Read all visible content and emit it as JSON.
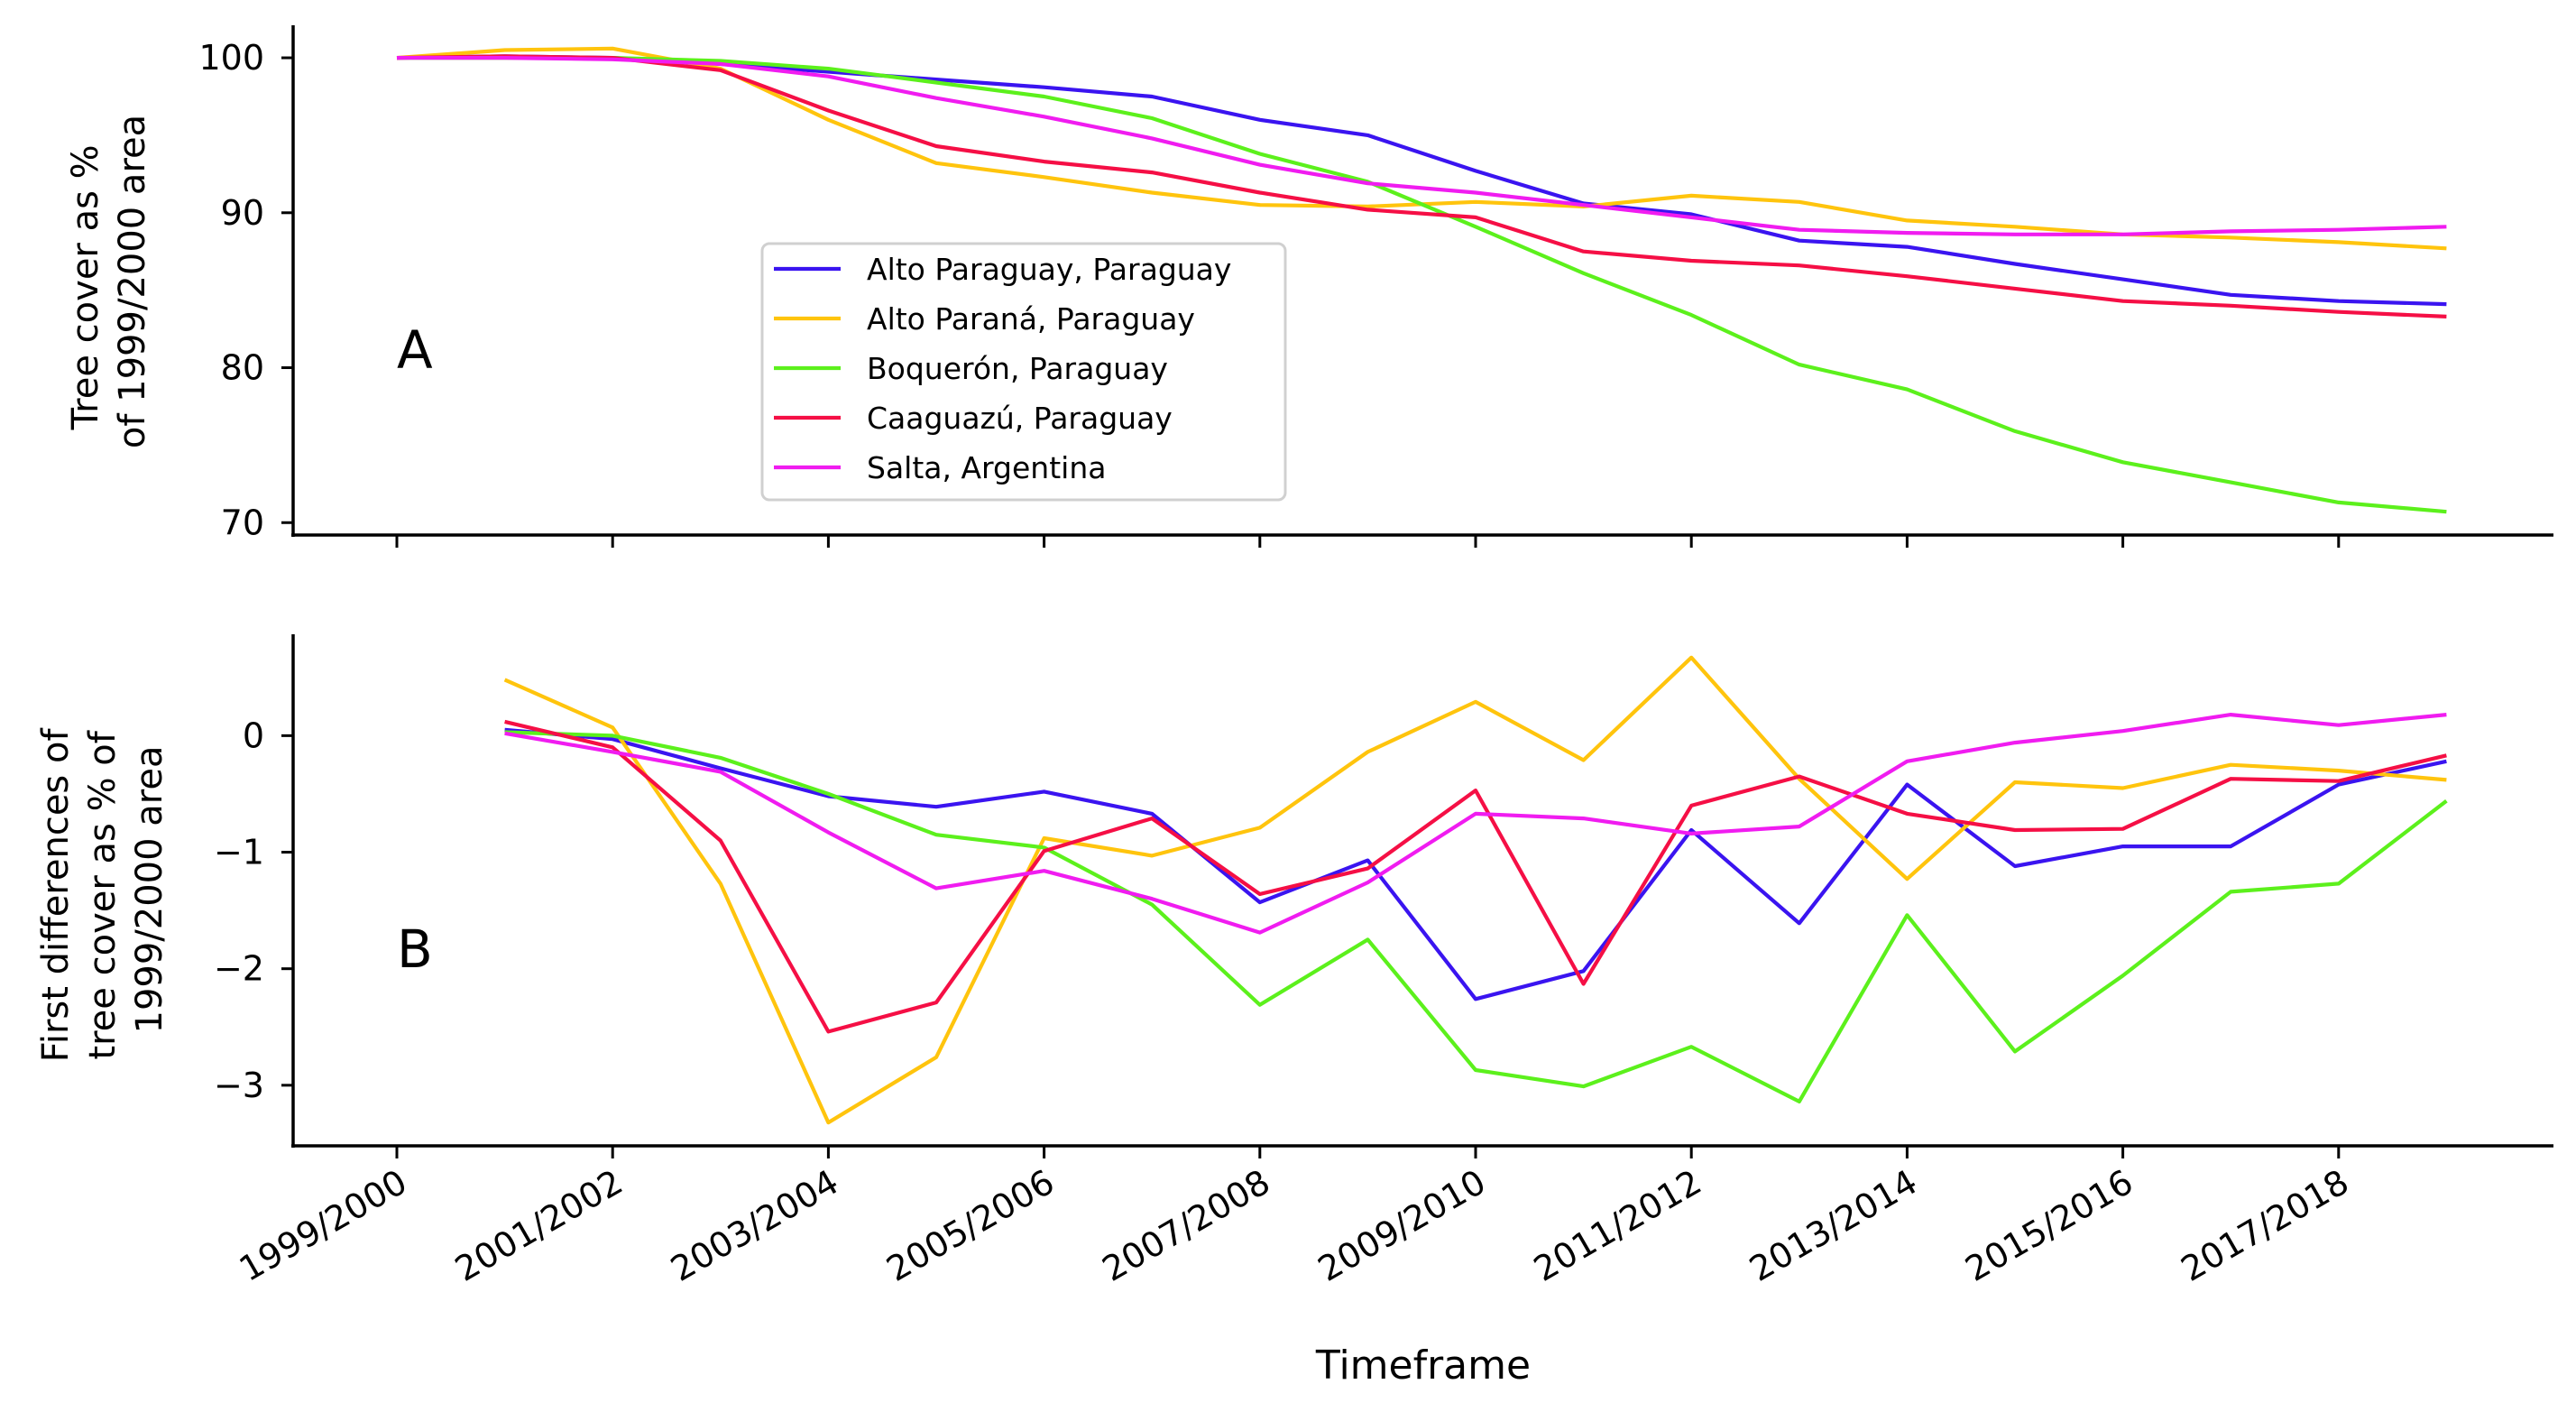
{
  "chart_data": [
    {
      "type": "line",
      "panel_label": "A",
      "title": "",
      "xlabel": "",
      "ylabel": [
        "Tree cover as %",
        "of 1999/2000 area"
      ],
      "x": [
        "1999/2000",
        "2000/2001",
        "2001/2002",
        "2002/2003",
        "2003/2004",
        "2004/2005",
        "2005/2006",
        "2006/2007",
        "2007/2008",
        "2008/2009",
        "2009/2010",
        "2010/2011",
        "2011/2012",
        "2012/2013",
        "2013/2014",
        "2014/2015",
        "2015/2016",
        "2016/2017",
        "2017/2018",
        "2018/2019"
      ],
      "yticks": [
        70,
        80,
        90,
        100
      ],
      "ylim": [
        69.2,
        102.1
      ],
      "legend_position": "center-left",
      "series": [
        {
          "name": "Alto Paraguay, Paraguay",
          "color": "#3a14f0",
          "values": [
            100,
            100.1,
            100.0,
            99.6,
            99.1,
            98.6,
            98.1,
            97.5,
            96.0,
            95.0,
            92.7,
            90.6,
            89.9,
            88.2,
            87.8,
            86.7,
            85.7,
            84.7,
            84.3,
            84.1
          ]
        },
        {
          "name": "Alto Paraná, Paraguay",
          "color": "#ffc40d",
          "values": [
            100,
            100.5,
            100.6,
            99.3,
            96.0,
            93.2,
            92.3,
            91.3,
            90.5,
            90.4,
            90.7,
            90.4,
            91.1,
            90.7,
            89.5,
            89.1,
            88.6,
            88.4,
            88.1,
            87.7
          ]
        },
        {
          "name": "Boquerón, Paraguay",
          "color": "#5cf01c",
          "values": [
            100,
            100.0,
            100.0,
            99.8,
            99.3,
            98.4,
            97.5,
            96.1,
            93.8,
            92.0,
            89.1,
            86.1,
            83.4,
            80.2,
            78.6,
            75.9,
            73.9,
            72.6,
            71.3,
            70.7
          ]
        },
        {
          "name": "Caaguazú, Paraguay",
          "color": "#f50f45",
          "values": [
            100,
            100.1,
            100.0,
            99.2,
            96.6,
            94.3,
            93.3,
            92.6,
            91.3,
            90.2,
            89.7,
            87.5,
            86.9,
            86.6,
            85.9,
            85.1,
            84.3,
            84.0,
            83.6,
            83.3
          ]
        },
        {
          "name": "Salta, Argentina",
          "color": "#f01cf0",
          "values": [
            100,
            100.0,
            99.9,
            99.6,
            98.8,
            97.4,
            96.2,
            94.8,
            93.1,
            91.9,
            91.3,
            90.5,
            89.7,
            88.9,
            88.7,
            88.6,
            88.6,
            88.8,
            88.9,
            89.1
          ]
        }
      ]
    },
    {
      "type": "line",
      "panel_label": "B",
      "title": "",
      "xlabel": "Timeframe",
      "ylabel": [
        "First differences of",
        "tree cover as % of",
        "1999/2000 area"
      ],
      "x": [
        "2000/2001",
        "2001/2002",
        "2002/2003",
        "2003/2004",
        "2004/2005",
        "2005/2006",
        "2006/2007",
        "2007/2008",
        "2008/2009",
        "2009/2010",
        "2010/2011",
        "2011/2012",
        "2012/2013",
        "2013/2014",
        "2014/2015",
        "2015/2016",
        "2016/2017",
        "2017/2018",
        "2018/2019"
      ],
      "xticks": [
        "1999/2000",
        "2001/2002",
        "2003/2004",
        "2005/2006",
        "2007/2008",
        "2009/2010",
        "2011/2012",
        "2013/2014",
        "2015/2016",
        "2017/2018"
      ],
      "yticks": [
        -3,
        -2,
        -1,
        0
      ],
      "ylim": [
        -3.52,
        0.87
      ],
      "series": [
        {
          "name": "Alto Paraguay, Paraguay",
          "color": "#3a14f0",
          "values": [
            0.05,
            -0.03,
            -0.28,
            -0.52,
            -0.61,
            -0.48,
            -0.67,
            -1.43,
            -1.07,
            -2.26,
            -2.02,
            -0.81,
            -1.61,
            -0.42,
            -1.12,
            -0.95,
            -0.95,
            -0.42,
            -0.22
          ]
        },
        {
          "name": "Alto Paraná, Paraguay",
          "color": "#ffc40d",
          "values": [
            0.48,
            0.07,
            -1.27,
            -3.32,
            -2.76,
            -0.88,
            -1.03,
            -0.79,
            -0.14,
            0.29,
            -0.21,
            0.67,
            -0.37,
            -1.23,
            -0.4,
            -0.45,
            -0.25,
            -0.3,
            -0.38
          ]
        },
        {
          "name": "Boquerón, Paraguay",
          "color": "#5cf01c",
          "values": [
            0.03,
            0.0,
            -0.19,
            -0.5,
            -0.85,
            -0.96,
            -1.45,
            -2.31,
            -1.75,
            -2.87,
            -3.01,
            -2.67,
            -3.14,
            -1.54,
            -2.71,
            -2.06,
            -1.34,
            -1.27,
            -0.56
          ]
        },
        {
          "name": "Caaguazú, Paraguay",
          "color": "#f50f45",
          "values": [
            0.12,
            -0.1,
            -0.9,
            -2.54,
            -2.29,
            -0.99,
            -0.71,
            -1.36,
            -1.14,
            -0.47,
            -2.13,
            -0.6,
            -0.35,
            -0.67,
            -0.81,
            -0.8,
            -0.37,
            -0.39,
            -0.17
          ]
        },
        {
          "name": "Salta, Argentina",
          "color": "#f01cf0",
          "values": [
            0.02,
            -0.14,
            -0.31,
            -0.83,
            -1.31,
            -1.16,
            -1.4,
            -1.69,
            -1.26,
            -0.67,
            -0.71,
            -0.84,
            -0.78,
            -0.22,
            -0.06,
            0.04,
            0.18,
            0.09,
            0.18
          ]
        }
      ]
    }
  ]
}
